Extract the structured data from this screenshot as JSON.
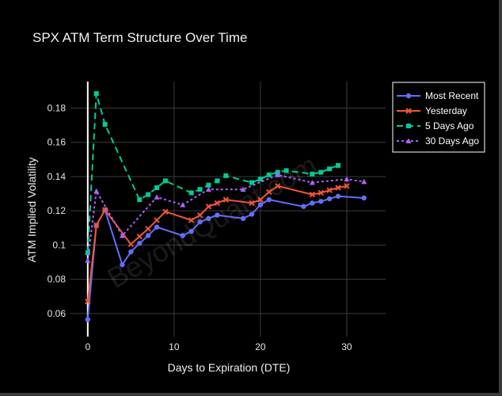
{
  "chart_data": {
    "type": "line",
    "title": "SPX ATM Term Structure Over Time",
    "xlabel": "Days to Expiration (DTE)",
    "ylabel": "ATM Implied Volatility",
    "xlim": [
      -2,
      34.5
    ],
    "ylim": [
      0.0465,
      0.1955
    ],
    "xticks": [
      0,
      10,
      20,
      30
    ],
    "yticks": [
      0.06,
      0.08,
      0.1,
      0.12,
      0.14,
      0.16,
      0.18
    ],
    "ytick_labels": [
      "0.06",
      "0.08",
      "0.1",
      "0.12",
      "0.14",
      "0.16",
      "0.18"
    ],
    "grid": true,
    "legend_position": "top-right",
    "watermark": "BeyondQuant.com",
    "series": [
      {
        "name": "Most Recent",
        "color": "#636efa",
        "dash": "solid",
        "marker": "circle",
        "x": [
          0,
          1,
          2,
          4,
          5,
          6,
          7,
          8,
          11,
          12,
          13,
          14,
          15,
          18,
          19,
          20,
          21,
          25,
          26,
          27,
          28,
          29,
          32
        ],
        "y": [
          0.0565,
          0.1115,
          0.1205,
          0.0885,
          0.096,
          0.101,
          0.1055,
          0.1105,
          0.1055,
          0.108,
          0.1135,
          0.1155,
          0.1175,
          0.1155,
          0.118,
          0.1235,
          0.1265,
          0.1225,
          0.1245,
          0.1255,
          0.127,
          0.1285,
          0.1275
        ]
      },
      {
        "name": "Yesterday",
        "color": "#ef553b",
        "dash": "solid",
        "marker": "x",
        "x": [
          0,
          1,
          2,
          5,
          6,
          7,
          8,
          9,
          12,
          13,
          14,
          15,
          16,
          19,
          20,
          21,
          22,
          26,
          27,
          28,
          29,
          30
        ],
        "y": [
          0.067,
          0.1115,
          0.1205,
          0.1005,
          0.105,
          0.1095,
          0.1145,
          0.1195,
          0.1145,
          0.1175,
          0.1225,
          0.1245,
          0.1265,
          0.1245,
          0.1265,
          0.131,
          0.1345,
          0.1295,
          0.1305,
          0.132,
          0.1335,
          0.1345
        ]
      },
      {
        "name": "5 Days Ago",
        "color": "#00cc96",
        "dash": "dash",
        "marker": "square",
        "x": [
          0,
          1,
          2,
          6,
          7,
          8,
          9,
          12,
          13,
          14,
          15,
          16,
          19,
          20,
          21,
          22,
          23,
          26,
          27,
          28,
          29
        ],
        "y": [
          0.0955,
          0.1885,
          0.1705,
          0.1265,
          0.1295,
          0.1335,
          0.1375,
          0.1305,
          0.1325,
          0.135,
          0.1375,
          0.1405,
          0.1365,
          0.1385,
          0.141,
          0.1425,
          0.1435,
          0.1415,
          0.1425,
          0.1445,
          0.1465
        ]
      },
      {
        "name": "30 Days Ago",
        "color": "#ab63fa",
        "dash": "dot",
        "marker": "triangle-up",
        "x": [
          0,
          1,
          4,
          8,
          11,
          14,
          18,
          22,
          26,
          30,
          32
        ],
        "y": [
          0.091,
          0.1315,
          0.1055,
          0.128,
          0.1235,
          0.1325,
          0.1325,
          0.141,
          0.1365,
          0.1385,
          0.137
        ]
      }
    ]
  }
}
